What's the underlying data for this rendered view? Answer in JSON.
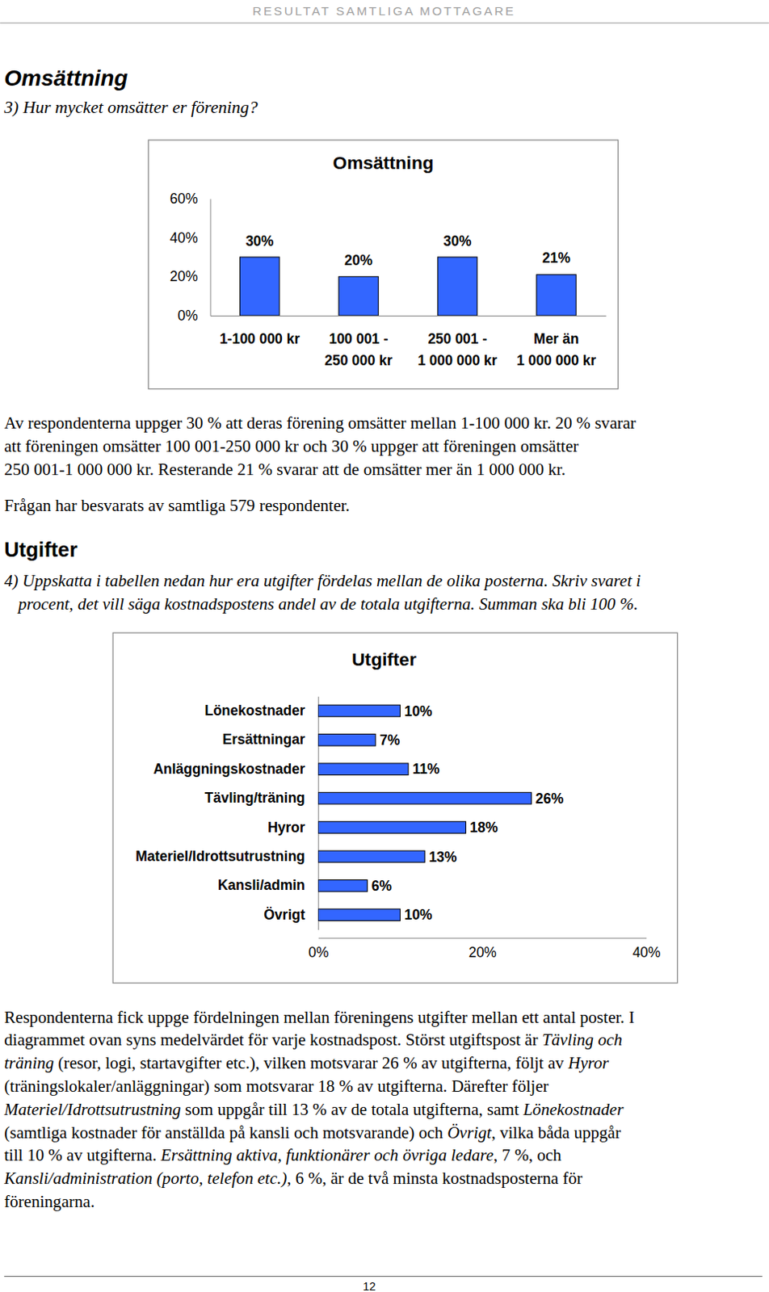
{
  "header": {
    "title": "RESULTAT SAMTLIGA MOTTAGARE"
  },
  "section1": {
    "heading": "Omsättning",
    "question": "3) Hur mycket omsätter er förening?",
    "paragraphs": [
      [
        "Av respondenterna uppger 30 % att deras förening omsätter mellan 1-100 000 kr. 20 % svarar",
        "att föreningen omsätter 100 001-250 000 kr och 30 % uppger att föreningen omsätter",
        "250 001-1 000 000 kr. Resterande 21 % svarar att de omsätter mer än 1 000 000 kr."
      ],
      [
        "Frågan har besvarats av samtliga 579 respondenter."
      ]
    ]
  },
  "section2": {
    "heading": "Utgifter",
    "question": [
      "4) Uppskatta i tabellen nedan hur era utgifter fördelas mellan de olika posterna. Skriv svaret i",
      "procent, det vill säga kostnadspostens andel av de totala utgifterna. Summan ska bli 100 %."
    ],
    "paragraph": [
      [
        "Respondenterna fick uppge fördelningen mellan föreningens utgifter mellan ett antal poster. I"
      ],
      [
        "diagrammet ovan syns medelvärdet för varje kostnadspost. Störst utgiftspost är ",
        {
          "em": "Tävling och"
        }
      ],
      [
        {
          "em": "träning"
        },
        " (resor, logi, startavgifter etc.), vilken motsvarar 26 % av utgifterna, följt av ",
        {
          "em": "Hyror"
        }
      ],
      [
        "(träningslokaler/anläggningar) som motsvarar 18 % av utgifterna. Därefter följer"
      ],
      [
        {
          "em": "Materiel/Idrottsutrustning"
        },
        " som uppgår till 13 % av de totala utgifterna, samt ",
        {
          "em": "Lönekostnader"
        }
      ],
      [
        "(samtliga kostnader för anställda på kansli och motsvarande) och ",
        {
          "em": "Övrigt"
        },
        ", vilka båda uppgår"
      ],
      [
        "till 10 % av utgifterna. ",
        {
          "em": "Ersättning aktiva, funktionärer och övriga ledare"
        },
        ", 7 %, och"
      ],
      [
        {
          "em": "Kansli/administration (porto, telefon etc.)"
        },
        ", 6 %, är de två minsta kostnadsposterna för"
      ],
      [
        "föreningarna."
      ]
    ]
  },
  "footer": {
    "page": 12
  },
  "chart_data": [
    {
      "type": "bar",
      "title": "Omsättning",
      "categories": [
        "1-100 000 kr",
        "100 001 -\n250 000 kr",
        "250 001 -\n1 000 000 kr",
        "Mer än\n1 000 000 kr"
      ],
      "values": [
        30,
        20,
        30,
        21
      ],
      "value_labels": [
        "30%",
        "20%",
        "30%",
        "21%"
      ],
      "color": "#3366ff",
      "ylim": [
        0,
        60
      ],
      "yticks": [
        {
          "value": 0,
          "label": "0%"
        },
        {
          "value": 20,
          "label": "20%"
        },
        {
          "value": 40,
          "label": "40%"
        },
        {
          "value": 60,
          "label": "60%"
        }
      ],
      "grid": false,
      "data_labels": true
    },
    {
      "type": "bar",
      "orientation": "horizontal",
      "title": "Utgifter",
      "categories": [
        "Lönekostnader",
        "Ersättningar",
        "Anläggningskostnader",
        "Tävling/träning",
        "Hyror",
        "Materiel/Idrottsutrustning",
        "Kansli/admin",
        "Övrigt"
      ],
      "values": [
        10,
        7,
        11,
        26,
        18,
        13,
        6,
        10
      ],
      "value_labels": [
        "10%",
        "7%",
        "11%",
        "26%",
        "18%",
        "13%",
        "6%",
        "10%"
      ],
      "color": "#3366ff",
      "xlim": [
        0,
        40
      ],
      "xticks": [
        {
          "value": 0,
          "label": "0%"
        },
        {
          "value": 20,
          "label": "20%"
        },
        {
          "value": 40,
          "label": "40%"
        }
      ],
      "grid": false,
      "data_labels": true
    }
  ]
}
